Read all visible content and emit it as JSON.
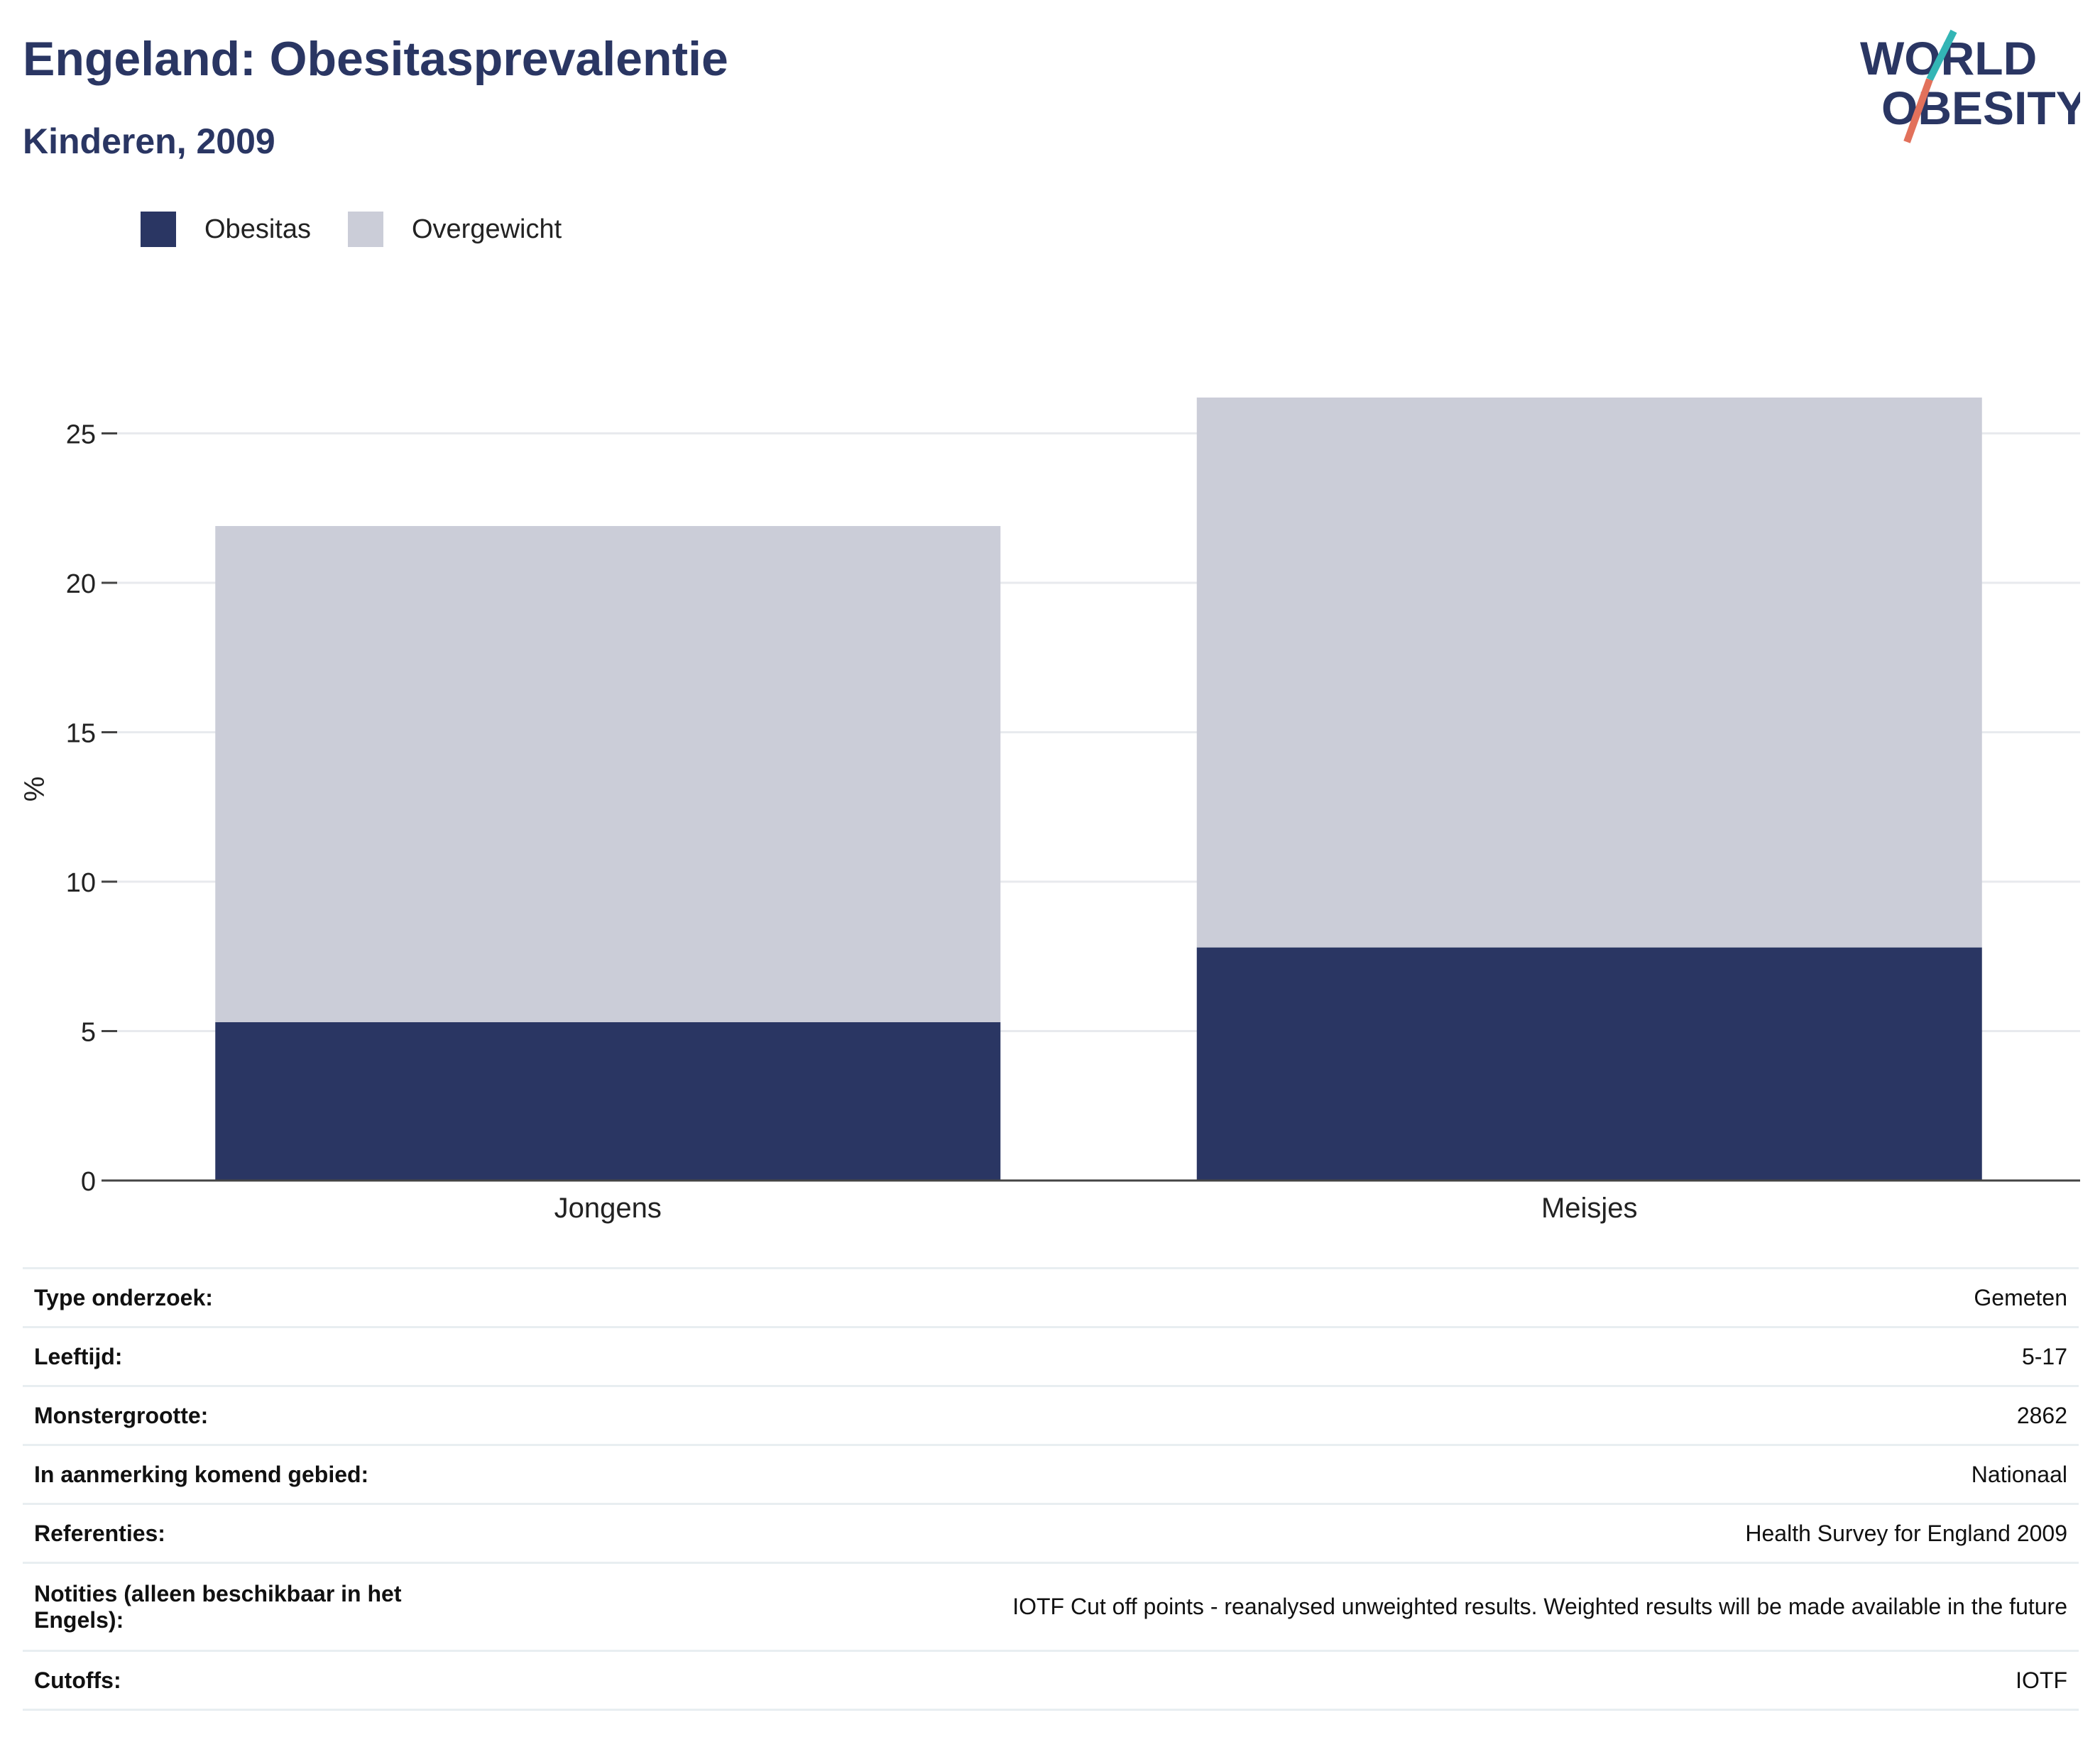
{
  "header": {
    "title": "Engeland: Obesitasprevalentie",
    "subtitle": "Kinderen, 2009"
  },
  "logo": {
    "line1": "WORLD",
    "line2": "OBESITY",
    "colors": [
      "#2a3663",
      "#33b5b5",
      "#e2715b"
    ]
  },
  "colors": {
    "obesitas": "#2a3663",
    "overgewicht": "#cbcdd8",
    "grid": "#e8eaee",
    "axis": "#444444"
  },
  "chart_data": {
    "type": "bar",
    "stacked": true,
    "categories": [
      "Jongens",
      "Meisjes"
    ],
    "series": [
      {
        "name": "Obesitas",
        "values": [
          5.3,
          7.8
        ]
      },
      {
        "name": "Overgewicht",
        "values": [
          16.6,
          18.4
        ]
      }
    ],
    "totals": [
      21.9,
      26.2
    ],
    "ylabel": "%",
    "ylim": [
      0,
      26.2
    ],
    "yticks": [
      0,
      5,
      10,
      15,
      20,
      25
    ],
    "grid": true,
    "legend": "top-left"
  },
  "info_rows": [
    {
      "label": "Type onderzoek:",
      "value": "Gemeten"
    },
    {
      "label": "Leeftijd:",
      "value": "5-17"
    },
    {
      "label": "Monstergrootte:",
      "value": "2862"
    },
    {
      "label": "In aanmerking komend gebied:",
      "value": "Nationaal"
    },
    {
      "label": "Referenties:",
      "value": "Health Survey for England 2009"
    },
    {
      "label": "Notities (alleen beschikbaar in het Engels):",
      "value": "IOTF Cut off points - reanalysed unweighted results. Weighted results will be made available in the future"
    },
    {
      "label": "Cutoffs:",
      "value": "IOTF"
    }
  ]
}
